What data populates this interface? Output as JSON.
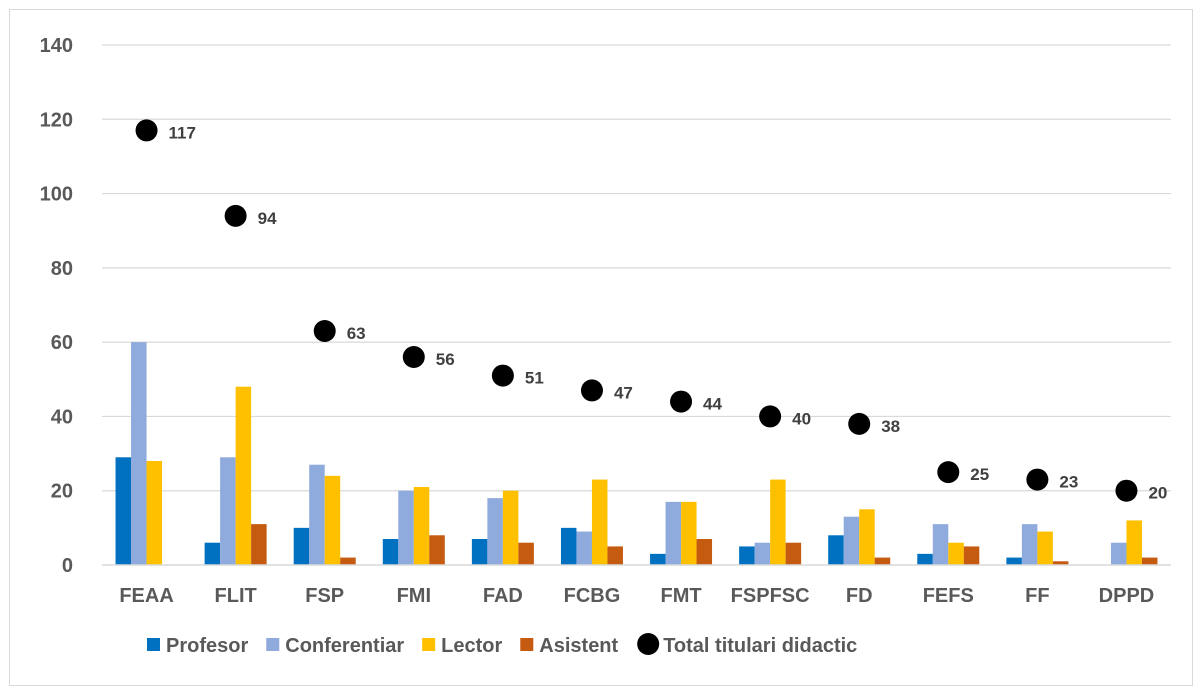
{
  "chart_data": {
    "type": "bar",
    "title": "",
    "xlabel": "",
    "ylabel": "",
    "ylim": [
      0,
      140
    ],
    "yticks": [
      0,
      20,
      40,
      60,
      80,
      100,
      120,
      140
    ],
    "grid": true,
    "legend_position": "bottom",
    "categories": [
      "FEAA",
      "FLIT",
      "FSP",
      "FMI",
      "FAD",
      "FCBG",
      "FMT",
      "FSPFSC",
      "FD",
      "FEFS",
      "FF",
      "DPPD"
    ],
    "series": [
      {
        "name": "Profesor",
        "color": "#0070c0",
        "values": [
          29,
          6,
          10,
          7,
          7,
          10,
          3,
          5,
          8,
          3,
          2,
          0
        ]
      },
      {
        "name": "Conferentiar",
        "color": "#8faadc",
        "values": [
          60,
          29,
          27,
          20,
          18,
          9,
          17,
          6,
          13,
          11,
          11,
          6
        ]
      },
      {
        "name": "Lector",
        "color": "#ffc000",
        "values": [
          28,
          48,
          24,
          21,
          20,
          23,
          17,
          23,
          15,
          6,
          9,
          12
        ]
      },
      {
        "name": "Asistent",
        "color": "#c55a11",
        "values": [
          0,
          11,
          2,
          8,
          6,
          5,
          7,
          6,
          2,
          5,
          1,
          2
        ]
      }
    ],
    "markers": {
      "name": "Total titulari didactic",
      "color": "#000000",
      "type": "scatter",
      "values": [
        117,
        94,
        63,
        56,
        51,
        47,
        44,
        40,
        38,
        25,
        23,
        20
      ],
      "data_labels": [
        "117",
        "94",
        "63",
        "56",
        "51",
        "47",
        "44",
        "40",
        "38",
        "25",
        "23",
        "20"
      ]
    }
  }
}
